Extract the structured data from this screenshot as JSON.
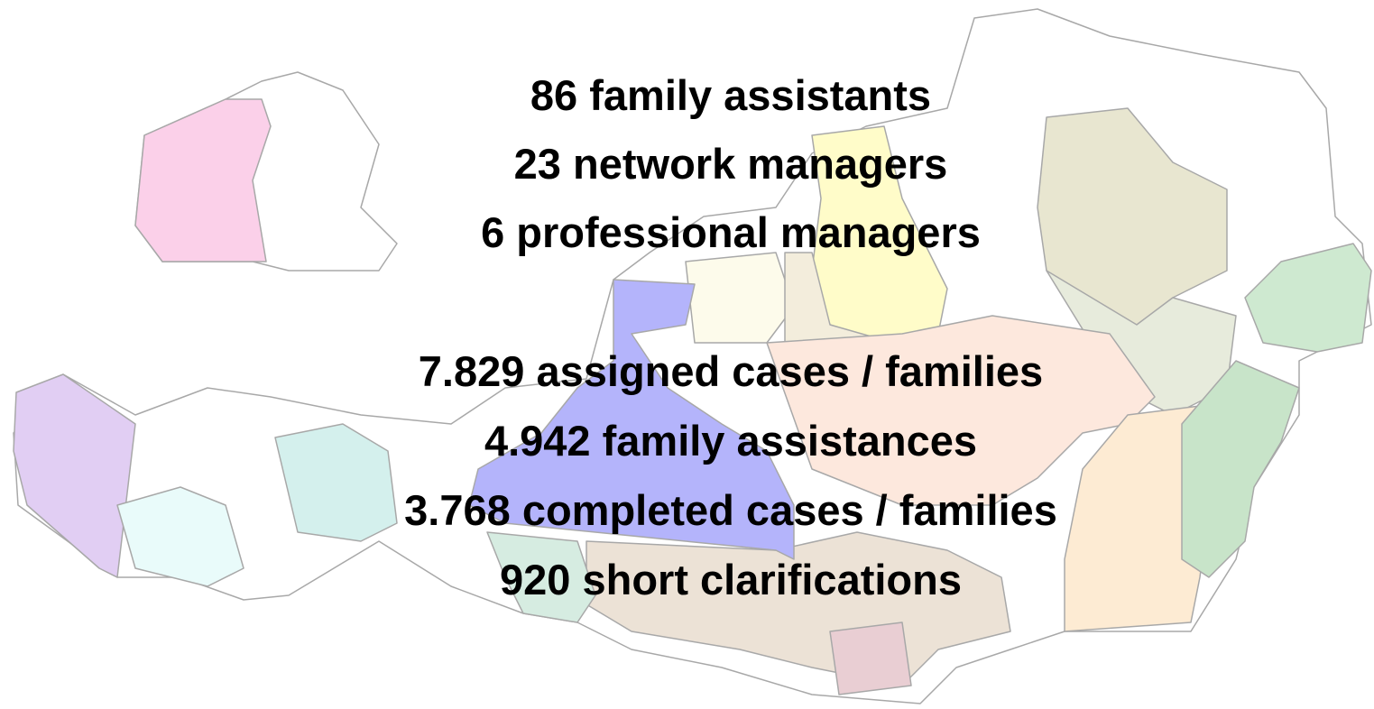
{
  "overlay": {
    "staff": [
      "86 family assistants",
      "23 network managers",
      "6 professional managers"
    ],
    "cases": [
      "7.829 assigned cases / families",
      "4.942 family assistances",
      "3.768 completed cases / families",
      "920 short clarifications"
    ]
  }
}
